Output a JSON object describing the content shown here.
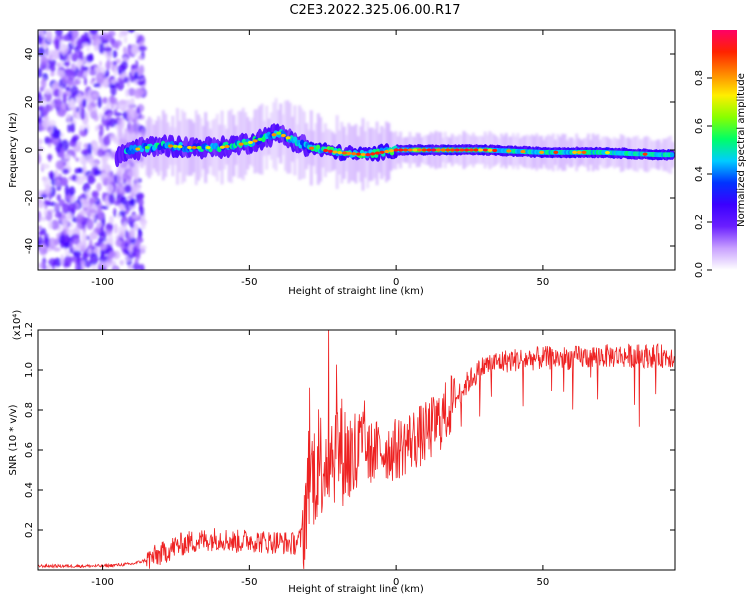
{
  "title": "C2E3.2022.325.06.00.R17",
  "chart_data": [
    {
      "type": "heatmap",
      "xlabel": "Height of straight line (km)",
      "ylabel": "Frequency (Hz)",
      "xlim": [
        -122,
        95
      ],
      "ylim": [
        -50,
        50
      ],
      "xticks": [
        -100,
        -50,
        0,
        50
      ],
      "yticks": [
        -40,
        -20,
        0,
        20,
        40
      ],
      "colorbar": {
        "label": "Normalized spectral amplitude",
        "range": [
          0.0,
          1.0
        ],
        "ticks": [
          "0.0",
          "0.2",
          "0.4",
          "0.6",
          "0.8"
        ],
        "colormap": [
          "#ffffff",
          "#c8a0ff",
          "#6a1fff",
          "#3b00ff",
          "#0033ff",
          "#00ccff",
          "#00ff66",
          "#88ff00",
          "#ffee00",
          "#ff8800",
          "#ff2200",
          "#ff0066"
        ]
      },
      "ridge": {
        "x": [
          -100,
          -90,
          -80,
          -70,
          -60,
          -50,
          -45,
          -40,
          -35,
          -30,
          -25,
          -20,
          -10,
          0,
          10,
          20,
          30,
          50,
          70,
          90
        ],
        "y": [
          -5,
          0,
          2,
          1,
          1,
          3,
          5,
          7,
          4,
          1,
          0,
          -1,
          -2,
          0,
          0,
          0,
          0,
          -1,
          -1,
          -2
        ]
      }
    },
    {
      "type": "line",
      "xlabel": "Height of straight line (km)",
      "ylabel": "SNR (10 * v/v)",
      "yscale_label": "(x10⁴)",
      "xlim": [
        -122,
        95
      ],
      "ylim": [
        0,
        1.2
      ],
      "xticks": [
        -100,
        -50,
        0,
        50
      ],
      "yticks": [
        "0.2",
        "0.4",
        "0.6",
        "0.8",
        "1.0",
        "1.2"
      ],
      "color": "#ee2222",
      "series": [
        {
          "trend_x": [
            -122,
            -100,
            -90,
            -85,
            -80,
            -75,
            -70,
            -60,
            -55,
            -50,
            -45,
            -40,
            -35,
            -32,
            -30,
            -25,
            -20,
            -15,
            -10,
            -5,
            0,
            5,
            10,
            15,
            20,
            25,
            30,
            35,
            40,
            50,
            60,
            70,
            80,
            95
          ],
          "trend_y": [
            0.02,
            0.02,
            0.03,
            0.05,
            0.08,
            0.12,
            0.14,
            0.16,
            0.14,
            0.15,
            0.14,
            0.14,
            0.13,
            0.16,
            0.45,
            0.55,
            0.62,
            0.55,
            0.58,
            0.6,
            0.6,
            0.65,
            0.68,
            0.75,
            0.85,
            0.95,
            1.02,
            1.04,
            1.05,
            1.06,
            1.06,
            1.07,
            1.07,
            1.07
          ]
        }
      ]
    }
  ]
}
